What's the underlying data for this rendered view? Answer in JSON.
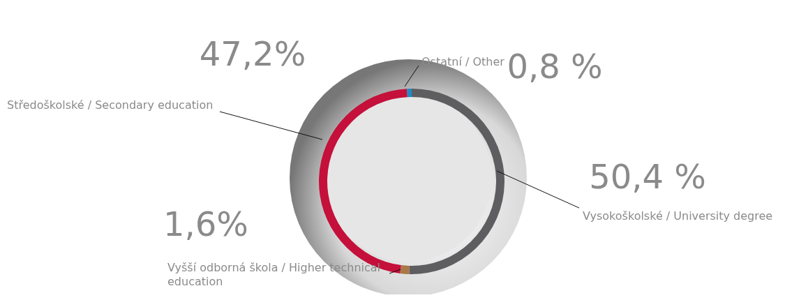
{
  "chart_data": {
    "type": "donut",
    "categories": [
      "Vysokoškolské / University degree",
      "Vyšší odborná škola / Higher technical education",
      "Středoškolské / Secondary education",
      "Ostatní / Other"
    ],
    "values": [
      50.4,
      1.6,
      47.2,
      0.8
    ],
    "colors": [
      "#5e5e60",
      "#a87848",
      "#c4103a",
      "#1e8cc8"
    ],
    "value_labels": [
      "50,4 %",
      "1,6%",
      "47,2%",
      "0,8 %"
    ]
  }
}
